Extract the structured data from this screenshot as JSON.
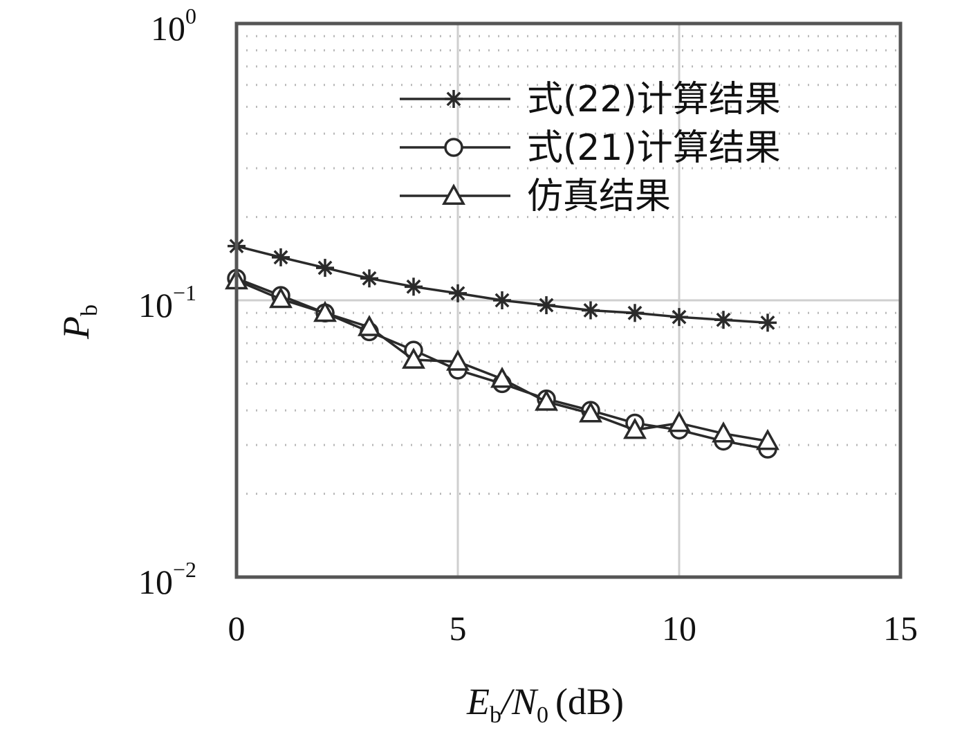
{
  "chart_data": {
    "type": "line",
    "x_scale": "linear",
    "y_scale": "log",
    "xlim": [
      0,
      15
    ],
    "ylim": [
      0.01,
      1
    ],
    "grid": true,
    "legend_position": "top-right",
    "xlabel": {
      "prefix": "E",
      "sub1": "b",
      "middle": "/N",
      "sub2": "0",
      "unit": "(dB)"
    },
    "ylabel": {
      "main": "P",
      "sub": "b"
    },
    "x_ticks": [
      {
        "value": 0,
        "label": "0"
      },
      {
        "value": 5,
        "label": "5"
      },
      {
        "value": 10,
        "label": "10"
      },
      {
        "value": 15,
        "label": "15"
      }
    ],
    "y_ticks": [
      {
        "value": 1,
        "base": "10",
        "exp": "0"
      },
      {
        "value": 0.1,
        "base": "10",
        "exp": "−1"
      },
      {
        "value": 0.01,
        "base": "10",
        "exp": "−2"
      }
    ],
    "series": [
      {
        "name": "式(22)计算结果",
        "marker": "asterisk",
        "color": "#2a2a2a",
        "x": [
          0,
          1,
          2,
          3,
          4,
          5,
          6,
          7,
          8,
          9,
          10,
          11,
          12
        ],
        "y": [
          0.157,
          0.143,
          0.131,
          0.12,
          0.112,
          0.106,
          0.1,
          0.096,
          0.092,
          0.09,
          0.087,
          0.085,
          0.083
        ]
      },
      {
        "name": "式(21)计算结果",
        "marker": "circle",
        "color": "#2a2a2a",
        "x": [
          0,
          1,
          2,
          3,
          4,
          5,
          6,
          7,
          8,
          9,
          10,
          11,
          12
        ],
        "y": [
          0.12,
          0.104,
          0.09,
          0.077,
          0.066,
          0.056,
          0.05,
          0.044,
          0.04,
          0.036,
          0.034,
          0.031,
          0.029
        ]
      },
      {
        "name": "仿真结果",
        "marker": "triangle",
        "color": "#2a2a2a",
        "x": [
          0,
          1,
          2,
          3,
          4,
          5,
          6,
          7,
          8,
          9,
          10,
          11,
          12
        ],
        "y": [
          0.118,
          0.101,
          0.09,
          0.08,
          0.061,
          0.06,
          0.052,
          0.043,
          0.039,
          0.034,
          0.036,
          0.033,
          0.031
        ]
      }
    ]
  }
}
